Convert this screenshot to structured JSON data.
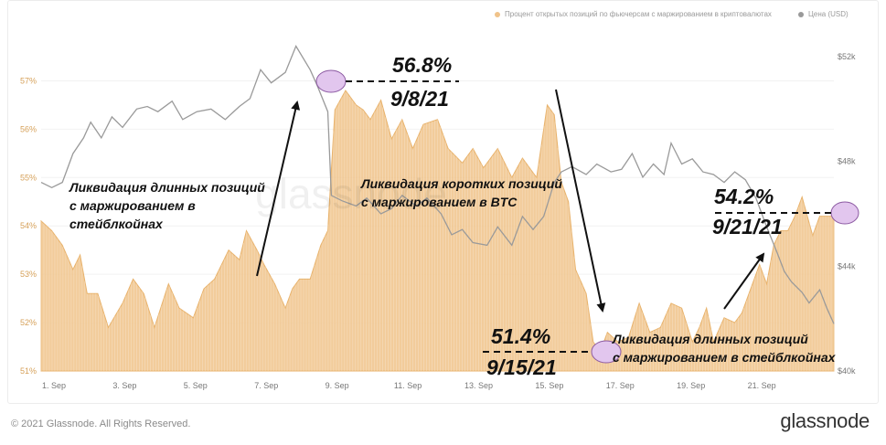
{
  "legend": {
    "oi_label": "Процент открытых позиций по фьючерсам с маржированием в криптовалютах",
    "price_label": "Цена (USD)",
    "oi_color": "#f0c38a",
    "price_color": "#9a9a9a"
  },
  "watermark": "glassnode",
  "footer": {
    "copyright": "© 2021 Glassnode. All Rights Reserved.",
    "logo": "glassnode"
  },
  "annotations": {
    "peak_value": "56.8%",
    "peak_date": "9/8/21",
    "low_value": "51.4%",
    "low_date": "9/15/21",
    "right_value": "54.2%",
    "right_date": "9/21/21",
    "long_liq_1_line1": "Ликвидация длинных позиций",
    "long_liq_1_line2": "с маржированием в",
    "long_liq_1_line3": "стейблкойнах",
    "short_liq_line1": "Ликвидация коротких позиций",
    "short_liq_line2": "с маржированием в BTC",
    "long_liq_2_line1": "Ликвидация длинных позиций",
    "long_liq_2_line2": "с маржированием в стейблкойнах"
  },
  "chart_data": {
    "type": "area",
    "x_ticks": [
      "1. Sep",
      "3. Sep",
      "5. Sep",
      "7. Sep",
      "9. Sep",
      "11. Sep",
      "13. Sep",
      "15. Sep",
      "17. Sep",
      "19. Sep",
      "21. Sep"
    ],
    "y_left_ticks": [
      "51%",
      "52%",
      "53%",
      "54%",
      "55%",
      "56%",
      "57%"
    ],
    "y_left_range": [
      51,
      57.5
    ],
    "y_right_ticks": [
      "$40k",
      "$44k",
      "$48k",
      "$52k"
    ],
    "y_right_range": [
      40000,
      52000
    ],
    "series": [
      {
        "name": "Процент открытых позиций по фьючерсам с маржированием в криптовалютах",
        "axis": "left",
        "style": "area",
        "color": "#f0c38a",
        "points": [
          [
            0,
            54.1
          ],
          [
            0.3,
            53.9
          ],
          [
            0.6,
            53.6
          ],
          [
            0.9,
            53.1
          ],
          [
            1.1,
            53.4
          ],
          [
            1.3,
            52.6
          ],
          [
            1.6,
            52.6
          ],
          [
            1.9,
            51.9
          ],
          [
            2.3,
            52.4
          ],
          [
            2.6,
            52.9
          ],
          [
            2.9,
            52.6
          ],
          [
            3.2,
            51.9
          ],
          [
            3.6,
            52.8
          ],
          [
            3.9,
            52.3
          ],
          [
            4.3,
            52.1
          ],
          [
            4.6,
            52.7
          ],
          [
            4.9,
            52.9
          ],
          [
            5.3,
            53.5
          ],
          [
            5.6,
            53.3
          ],
          [
            5.8,
            53.9
          ],
          [
            6.1,
            53.5
          ],
          [
            6.3,
            53.2
          ],
          [
            6.6,
            52.8
          ],
          [
            6.9,
            52.3
          ],
          [
            7.1,
            52.7
          ],
          [
            7.3,
            52.9
          ],
          [
            7.6,
            52.9
          ],
          [
            7.9,
            53.6
          ],
          [
            8.1,
            53.9
          ],
          [
            8.3,
            56.4
          ],
          [
            8.6,
            56.8
          ],
          [
            8.9,
            56.5
          ],
          [
            9.1,
            56.4
          ],
          [
            9.3,
            56.2
          ],
          [
            9.6,
            56.6
          ],
          [
            9.9,
            55.8
          ],
          [
            10.2,
            56.2
          ],
          [
            10.5,
            55.6
          ],
          [
            10.8,
            56.1
          ],
          [
            11.2,
            56.2
          ],
          [
            11.5,
            55.6
          ],
          [
            11.9,
            55.3
          ],
          [
            12.2,
            55.6
          ],
          [
            12.5,
            55.2
          ],
          [
            12.9,
            55.6
          ],
          [
            13.3,
            55.0
          ],
          [
            13.6,
            55.4
          ],
          [
            14.0,
            55.0
          ],
          [
            14.3,
            56.5
          ],
          [
            14.5,
            56.3
          ],
          [
            14.7,
            54.9
          ],
          [
            14.9,
            54.5
          ],
          [
            15.1,
            53.1
          ],
          [
            15.4,
            52.6
          ],
          [
            15.6,
            51.6
          ],
          [
            15.8,
            51.4
          ],
          [
            16.0,
            51.8
          ],
          [
            16.3,
            51.6
          ],
          [
            16.6,
            51.7
          ],
          [
            16.9,
            52.4
          ],
          [
            17.2,
            51.8
          ],
          [
            17.5,
            51.9
          ],
          [
            17.8,
            52.4
          ],
          [
            18.1,
            52.3
          ],
          [
            18.4,
            51.6
          ],
          [
            18.6,
            51.9
          ],
          [
            18.8,
            52.3
          ],
          [
            19.0,
            51.6
          ],
          [
            19.3,
            52.1
          ],
          [
            19.6,
            52.0
          ],
          [
            19.8,
            52.2
          ],
          [
            20.0,
            52.6
          ],
          [
            20.3,
            53.2
          ],
          [
            20.5,
            52.8
          ],
          [
            20.7,
            53.6
          ],
          [
            20.9,
            53.9
          ],
          [
            21.1,
            53.9
          ],
          [
            21.3,
            54.2
          ],
          [
            21.5,
            54.6
          ],
          [
            21.8,
            53.8
          ],
          [
            22.0,
            54.2
          ],
          [
            22.4,
            54.2
          ]
        ]
      },
      {
        "name": "Цена (USD)",
        "axis": "right",
        "style": "line",
        "color": "#9a9a9a",
        "points": [
          [
            0,
            47.2
          ],
          [
            0.3,
            47.0
          ],
          [
            0.6,
            47.2
          ],
          [
            0.9,
            48.3
          ],
          [
            1.2,
            48.9
          ],
          [
            1.4,
            49.5
          ],
          [
            1.7,
            48.9
          ],
          [
            2.0,
            49.7
          ],
          [
            2.3,
            49.3
          ],
          [
            2.7,
            50.0
          ],
          [
            3.0,
            50.1
          ],
          [
            3.3,
            49.9
          ],
          [
            3.7,
            50.3
          ],
          [
            4.0,
            49.6
          ],
          [
            4.4,
            49.9
          ],
          [
            4.8,
            50.0
          ],
          [
            5.2,
            49.6
          ],
          [
            5.6,
            50.1
          ],
          [
            5.9,
            50.4
          ],
          [
            6.2,
            51.5
          ],
          [
            6.5,
            51.0
          ],
          [
            6.9,
            51.4
          ],
          [
            7.2,
            52.4
          ],
          [
            7.6,
            51.5
          ],
          [
            7.8,
            50.9
          ],
          [
            8.1,
            49.9
          ],
          [
            8.2,
            46.7
          ],
          [
            8.5,
            46.5
          ],
          [
            8.9,
            46.3
          ],
          [
            9.2,
            46.6
          ],
          [
            9.6,
            46.0
          ],
          [
            9.9,
            46.2
          ],
          [
            10.2,
            46.7
          ],
          [
            10.6,
            46.3
          ],
          [
            10.9,
            46.6
          ],
          [
            11.3,
            46.0
          ],
          [
            11.6,
            45.2
          ],
          [
            11.9,
            45.4
          ],
          [
            12.2,
            44.9
          ],
          [
            12.6,
            44.8
          ],
          [
            12.9,
            45.5
          ],
          [
            13.3,
            44.8
          ],
          [
            13.6,
            45.9
          ],
          [
            13.9,
            45.4
          ],
          [
            14.2,
            45.9
          ],
          [
            14.5,
            47.2
          ],
          [
            14.7,
            47.6
          ],
          [
            15.0,
            47.8
          ],
          [
            15.4,
            47.5
          ],
          [
            15.7,
            47.9
          ],
          [
            16.1,
            47.6
          ],
          [
            16.4,
            47.7
          ],
          [
            16.7,
            48.3
          ],
          [
            17.0,
            47.4
          ],
          [
            17.3,
            47.9
          ],
          [
            17.6,
            47.5
          ],
          [
            17.8,
            48.7
          ],
          [
            18.1,
            47.9
          ],
          [
            18.4,
            48.1
          ],
          [
            18.7,
            47.6
          ],
          [
            19.0,
            47.5
          ],
          [
            19.3,
            47.2
          ],
          [
            19.6,
            47.6
          ],
          [
            19.9,
            47.3
          ],
          [
            20.2,
            46.6
          ],
          [
            20.5,
            45.5
          ],
          [
            20.8,
            44.5
          ],
          [
            21.0,
            43.8
          ],
          [
            21.2,
            43.4
          ],
          [
            21.5,
            43.0
          ],
          [
            21.7,
            42.6
          ],
          [
            22.0,
            43.1
          ],
          [
            22.2,
            42.4
          ],
          [
            22.4,
            41.8
          ]
        ]
      }
    ]
  }
}
